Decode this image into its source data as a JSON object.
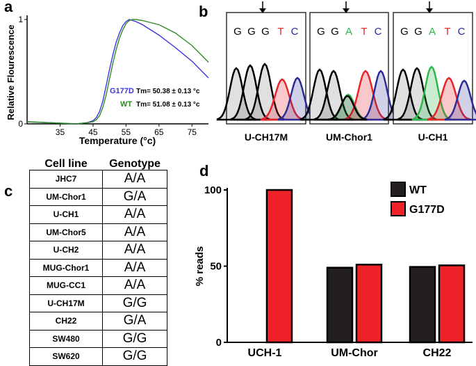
{
  "panels": {
    "a": "a",
    "b": "b",
    "c": "c",
    "d": "d"
  },
  "panel_a": {
    "chart_data": {
      "type": "line",
      "xlabel": "Temperature (°c)",
      "ylabel": "Relative Flourescence",
      "xlim": [
        25,
        80
      ],
      "ylim": [
        0,
        1
      ],
      "x_ticks": [
        35,
        45,
        55,
        65,
        75
      ],
      "y_ticks": [
        0,
        1
      ],
      "series": [
        {
          "name": "G177D",
          "color": "#3a34e0",
          "x": [
            25,
            40,
            43,
            45,
            46,
            47,
            48,
            49,
            50,
            51,
            52,
            53,
            54,
            55,
            56,
            57,
            58,
            60,
            65,
            70,
            75,
            80
          ],
          "y": [
            0.02,
            0.0,
            0.01,
            0.03,
            0.06,
            0.12,
            0.22,
            0.37,
            0.52,
            0.66,
            0.78,
            0.87,
            0.94,
            0.98,
            1.0,
            0.99,
            0.98,
            0.95,
            0.85,
            0.73,
            0.6,
            0.44
          ]
        },
        {
          "name": "WT",
          "color": "#2e8a22",
          "x": [
            25,
            40,
            43,
            45,
            46,
            47,
            48,
            49,
            50,
            51,
            52,
            53,
            54,
            55,
            56,
            57,
            58,
            60,
            65,
            70,
            75,
            80
          ],
          "y": [
            0.02,
            0.0,
            0.01,
            0.02,
            0.04,
            0.08,
            0.16,
            0.28,
            0.43,
            0.58,
            0.71,
            0.82,
            0.9,
            0.96,
            0.99,
            1.0,
            1.0,
            0.99,
            0.95,
            0.87,
            0.75,
            0.59
          ]
        }
      ],
      "annotations": [
        {
          "name": "G177D",
          "text": "Tm= 50.38 ± 0.13 °c",
          "color": "#3a34e0"
        },
        {
          "name": "WT",
          "text": "Tm= 51.08 ± 0.13 °c",
          "color": "#2e8a22"
        }
      ]
    }
  },
  "panel_b": {
    "traces": [
      {
        "label": "U-CH17M",
        "bases": [
          "G",
          "G",
          "G",
          "T",
          "C"
        ]
      },
      {
        "label": "UM-Chor1",
        "bases": [
          "G",
          "G",
          "A",
          "T",
          "C"
        ]
      },
      {
        "label": "U-CH1",
        "bases": [
          "G",
          "G",
          "A",
          "T",
          "C"
        ]
      }
    ],
    "base_colors": {
      "G": "#000000",
      "A": "#2db84a",
      "T": "#e8242a",
      "C": "#2c2c96"
    }
  },
  "panel_c": {
    "headers": [
      "Cell line",
      "Genotype"
    ],
    "rows": [
      [
        "JHC7",
        "A/A"
      ],
      [
        "UM-Chor1",
        "G/A"
      ],
      [
        "U-CH1",
        "A/A"
      ],
      [
        "UM-Chor5",
        "A/A"
      ],
      [
        "U-CH2",
        "A/A"
      ],
      [
        "MUG-Chor1",
        "A/A"
      ],
      [
        "MUG-CC1",
        "A/A"
      ],
      [
        "U-CH17M",
        "G/G"
      ],
      [
        "CH22",
        "G/A"
      ],
      [
        "SW480",
        "G/G"
      ],
      [
        "SW620",
        "G/G"
      ]
    ]
  },
  "panel_d": {
    "chart_data": {
      "type": "bar",
      "ylabel": "% reads",
      "ylim": [
        0,
        100
      ],
      "y_ticks": [
        0,
        50,
        100
      ],
      "categories": [
        "UCH-1",
        "UM-Chor",
        "CH22"
      ],
      "series": [
        {
          "name": "WT",
          "color": "#231f20",
          "values": [
            0,
            49,
            49.5
          ]
        },
        {
          "name": "G177D",
          "color": "#ee2228",
          "values": [
            100,
            51,
            50.5
          ]
        }
      ],
      "legend_position": "top-right"
    }
  }
}
